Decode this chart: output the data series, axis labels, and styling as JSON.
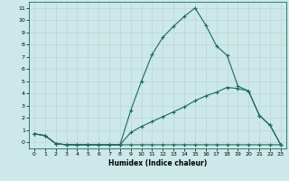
{
  "title": "",
  "xlabel": "Humidex (Indice chaleur)",
  "bg_color": "#cce8e8",
  "grid_color": "#c0d8d8",
  "line_color": "#1a6b5a",
  "xlim": [
    -0.5,
    23.5
  ],
  "ylim": [
    -0.5,
    11.5
  ],
  "xticks": [
    0,
    1,
    2,
    3,
    4,
    5,
    6,
    7,
    8,
    9,
    10,
    11,
    12,
    13,
    14,
    15,
    16,
    17,
    18,
    19,
    20,
    21,
    22,
    23
  ],
  "yticks": [
    0,
    1,
    2,
    3,
    4,
    5,
    6,
    7,
    8,
    9,
    10,
    11
  ],
  "line1_x": [
    0,
    1,
    2,
    3,
    4,
    5,
    6,
    7,
    8,
    9,
    10,
    11,
    12,
    13,
    14,
    15,
    16,
    17,
    18,
    19,
    20,
    21,
    22,
    23
  ],
  "line1_y": [
    0.7,
    0.55,
    -0.1,
    -0.2,
    -0.2,
    -0.2,
    -0.2,
    -0.2,
    -0.2,
    -0.2,
    -0.2,
    -0.2,
    -0.2,
    -0.2,
    -0.2,
    -0.2,
    -0.2,
    -0.2,
    -0.2,
    -0.2,
    -0.2,
    -0.2,
    -0.2,
    -0.2
  ],
  "line2_x": [
    0,
    1,
    2,
    3,
    4,
    5,
    6,
    7,
    8,
    9,
    10,
    11,
    12,
    13,
    14,
    15,
    16,
    17,
    18,
    19,
    20,
    21,
    22,
    23
  ],
  "line2_y": [
    0.7,
    0.55,
    -0.1,
    -0.2,
    -0.2,
    -0.2,
    -0.2,
    -0.2,
    -0.2,
    0.8,
    1.3,
    1.7,
    2.1,
    2.5,
    2.9,
    3.4,
    3.8,
    4.1,
    4.5,
    4.4,
    4.2,
    2.2,
    1.4,
    -0.2
  ],
  "line3_x": [
    0,
    1,
    2,
    3,
    4,
    5,
    6,
    7,
    8,
    9,
    10,
    11,
    12,
    13,
    14,
    15,
    16,
    17,
    18,
    19,
    20,
    21,
    22,
    23
  ],
  "line3_y": [
    0.7,
    0.55,
    -0.1,
    -0.2,
    -0.2,
    -0.2,
    -0.2,
    -0.2,
    -0.2,
    2.6,
    5.0,
    7.2,
    8.6,
    9.5,
    10.3,
    11.0,
    9.6,
    7.9,
    7.1,
    4.6,
    4.2,
    2.2,
    1.4,
    -0.2
  ],
  "xlabel_fontsize": 5.5,
  "tick_fontsize": 4.5,
  "linewidth": 0.8,
  "marker_size": 3.0
}
